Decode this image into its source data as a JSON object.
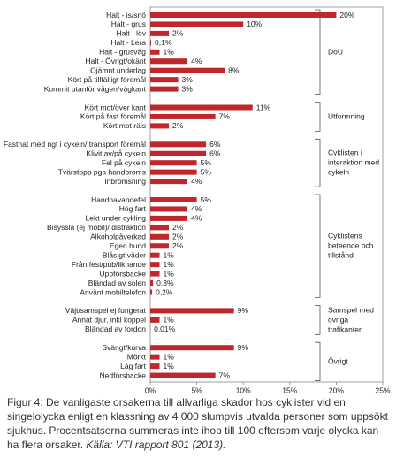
{
  "chart_data": {
    "type": "bar",
    "orientation": "horizontal",
    "color": "#c0272d",
    "xlim": [
      0,
      25
    ],
    "xticks": [
      {
        "value": 0,
        "label": "0%"
      },
      {
        "value": 5,
        "label": "5%"
      },
      {
        "value": 10,
        "label": "10%"
      },
      {
        "value": 15,
        "label": "15%"
      },
      {
        "value": 20,
        "label": "20%"
      },
      {
        "value": 25,
        "label": "25%"
      }
    ],
    "groups": [
      {
        "name": "DoU",
        "categories": [
          "Halt - is/snö",
          "Halt - grus",
          "Halt - löv",
          "Halt - Lera",
          "Halt - grusväg",
          "Halt - Övrigt/okänt",
          "Ojämnt underlag",
          "Kört på tillfälligt föremål",
          "Kommit utanför vägen/vägkant"
        ],
        "values": [
          20,
          10,
          2,
          0.1,
          1,
          4,
          8,
          3,
          3
        ],
        "value_labels": [
          "20%",
          "10%",
          "2%",
          "0,1%",
          "1%",
          "4%",
          "8%",
          "3%",
          "3%"
        ]
      },
      {
        "name": "Utformning",
        "categories": [
          "Kört mot/över kant",
          "Kört på fast föremål",
          "Kört mot räls"
        ],
        "values": [
          11,
          7,
          2
        ],
        "value_labels": [
          "11%",
          "7%",
          "2%"
        ]
      },
      {
        "name": "Cyklisten i interaktion med cykeln",
        "categories": [
          "Fastnat med ngt i cykeln/ transport föremål",
          "Klivit av/på cykeln",
          "Fel på cykeln",
          "Tvärstopp pga handbroms",
          "Inbromsning"
        ],
        "values": [
          6,
          6,
          5,
          5,
          4
        ],
        "value_labels": [
          "6%",
          "6%",
          "5%",
          "5%",
          "4%"
        ]
      },
      {
        "name": "Cyklistens beteende och tillstånd",
        "categories": [
          "Handhavandefel",
          "Hög fart",
          "Lekt under cykling",
          "Bisyssla (ej mobil)/ distraktion",
          "Alkoholpåverkad",
          "Egen hund",
          "Blåsigt väder",
          "Från fest/pub/liknande",
          "Uppförsbacke",
          "Bländad av solen",
          "Använt mobiltelefon"
        ],
        "values": [
          5,
          4,
          4,
          2,
          2,
          2,
          1,
          1,
          1,
          0.3,
          0.2
        ],
        "value_labels": [
          "5%",
          "4%",
          "4%",
          "2%",
          "2%",
          "2%",
          "1%",
          "1%",
          "1%",
          "0,3%",
          "0,2%"
        ]
      },
      {
        "name": "Samspel med övriga trafikanter",
        "categories": [
          "Väjt/samspel ej fungerat",
          "Annat djur, inkl koppel",
          "Bländad av fordon"
        ],
        "values": [
          9,
          1,
          0.01
        ],
        "value_labels": [
          "9%",
          "1%",
          "0,01%"
        ]
      },
      {
        "name": "Övrigt",
        "categories": [
          "Svängt/kurva",
          "Mörkt",
          "Låg fart",
          "Nedförsbacke"
        ],
        "values": [
          9,
          1,
          1,
          7
        ],
        "value_labels": [
          "9%",
          "1%",
          "1%",
          "7%"
        ]
      }
    ]
  },
  "caption": {
    "text": "Figur 4: De vanligaste orsakerna till allvarliga skador hos cyklister vid en singelolycka enligt en klassning av 4 000 slumpvis utvalda personer som uppsökt sjukhus. Procentsatserna summeras inte ihop till 100 eftersom varje olycka kan ha flera orsaker.",
    "source": "Källa: VTI rapport 801 (2013)."
  }
}
